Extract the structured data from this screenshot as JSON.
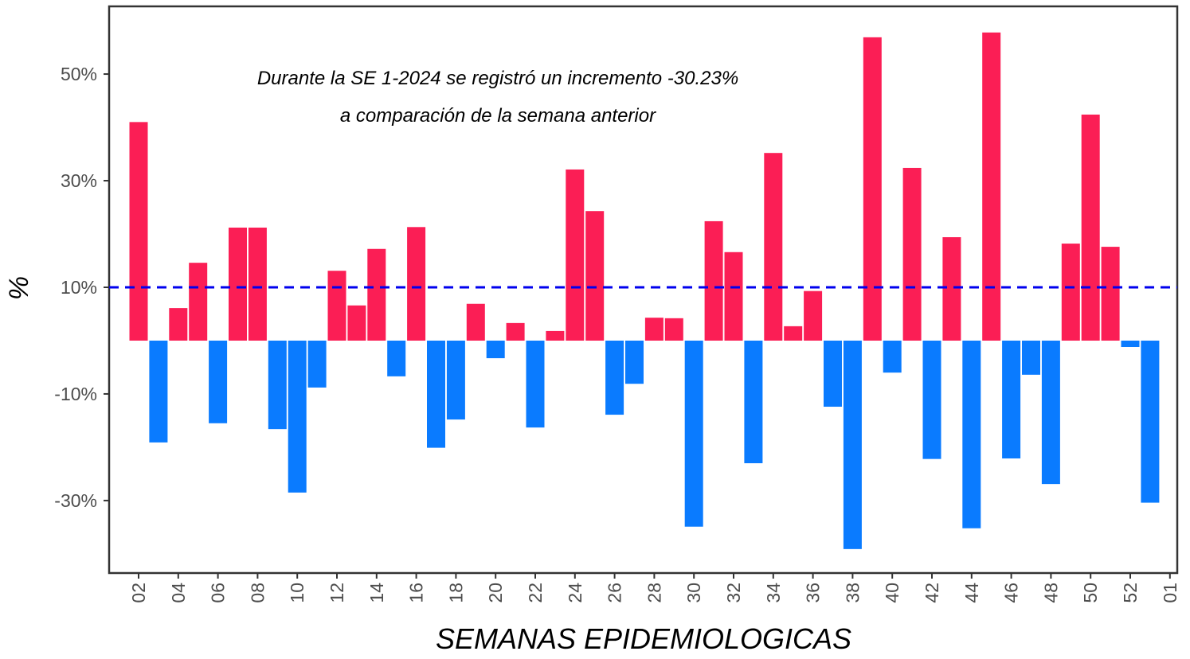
{
  "chart_data": {
    "type": "bar",
    "annotation": [
      "Durante la SE 1-2024 se registró un incremento -30.23%",
      "a comparación de la semana anterior"
    ],
    "x_label": "SEMANAS EPIDEMIOLOGICAS",
    "y_label": "%",
    "categories": [
      "02",
      null,
      "04",
      null,
      "06",
      null,
      "08",
      null,
      "10",
      null,
      "12",
      null,
      "14",
      null,
      "16",
      null,
      "18",
      null,
      "20",
      null,
      "22",
      null,
      "24",
      null,
      "26",
      null,
      "28",
      null,
      "30",
      null,
      "32",
      null,
      "34",
      null,
      "36",
      null,
      "38",
      null,
      "40",
      null,
      "42",
      null,
      "44",
      null,
      "46",
      null,
      "48",
      null,
      "50",
      null,
      "52",
      null,
      "01"
    ],
    "values": [
      41.0,
      -19.1,
      6.1,
      14.6,
      -15.5,
      21.2,
      21.2,
      -16.6,
      -28.5,
      -8.8,
      13.1,
      6.6,
      17.2,
      -6.7,
      21.3,
      -20.1,
      -14.8,
      6.9,
      -3.3,
      3.3,
      -16.3,
      1.8,
      32.1,
      24.3,
      -13.9,
      -8.1,
      4.3,
      4.2,
      -34.9,
      22.4,
      16.6,
      -23.0,
      35.2,
      2.7,
      9.3,
      -12.4,
      -39.1,
      56.9,
      -6.0,
      32.4,
      -22.2,
      19.4,
      -35.2,
      57.8,
      -22.1,
      -6.4,
      -26.9,
      18.2,
      42.4,
      17.6,
      -1.2,
      -30.4,
      null
    ],
    "positive_color": "#fb1e55",
    "negative_color": "#0a7bff",
    "reference_line": 10,
    "reference_color": "#0000ee",
    "ylim": [
      -43.6,
      62.7
    ],
    "yticks": [
      {
        "value": 50,
        "label": "50%"
      },
      {
        "value": 30,
        "label": "30%"
      },
      {
        "value": 10,
        "label": "10%"
      },
      {
        "value": -10,
        "label": "-10%"
      },
      {
        "value": -30,
        "label": "-30%"
      }
    ]
  }
}
